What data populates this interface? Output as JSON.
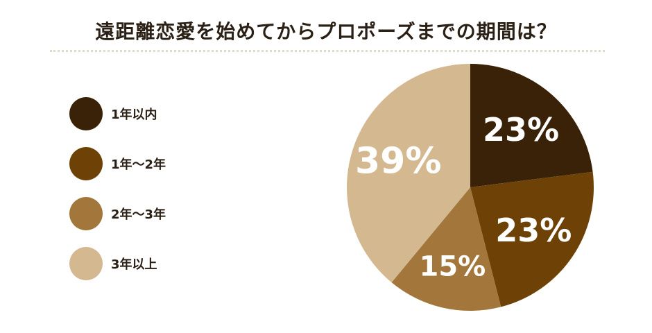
{
  "chart_data": {
    "type": "pie",
    "title": "遠距離恋愛を始めてからプロポーズまでの期間は？",
    "categories": [
      "1年以内",
      "1年〜2年",
      "2年〜3年",
      "3年以上"
    ],
    "values": [
      23,
      23,
      15,
      39
    ],
    "value_labels": [
      "23%",
      "23%",
      "15%",
      "39%"
    ],
    "colors": [
      "#3a2208",
      "#6e4207",
      "#a3773b",
      "#d4b890"
    ],
    "start": "12 o'clock",
    "direction": "clockwise",
    "legend_position": "left"
  }
}
